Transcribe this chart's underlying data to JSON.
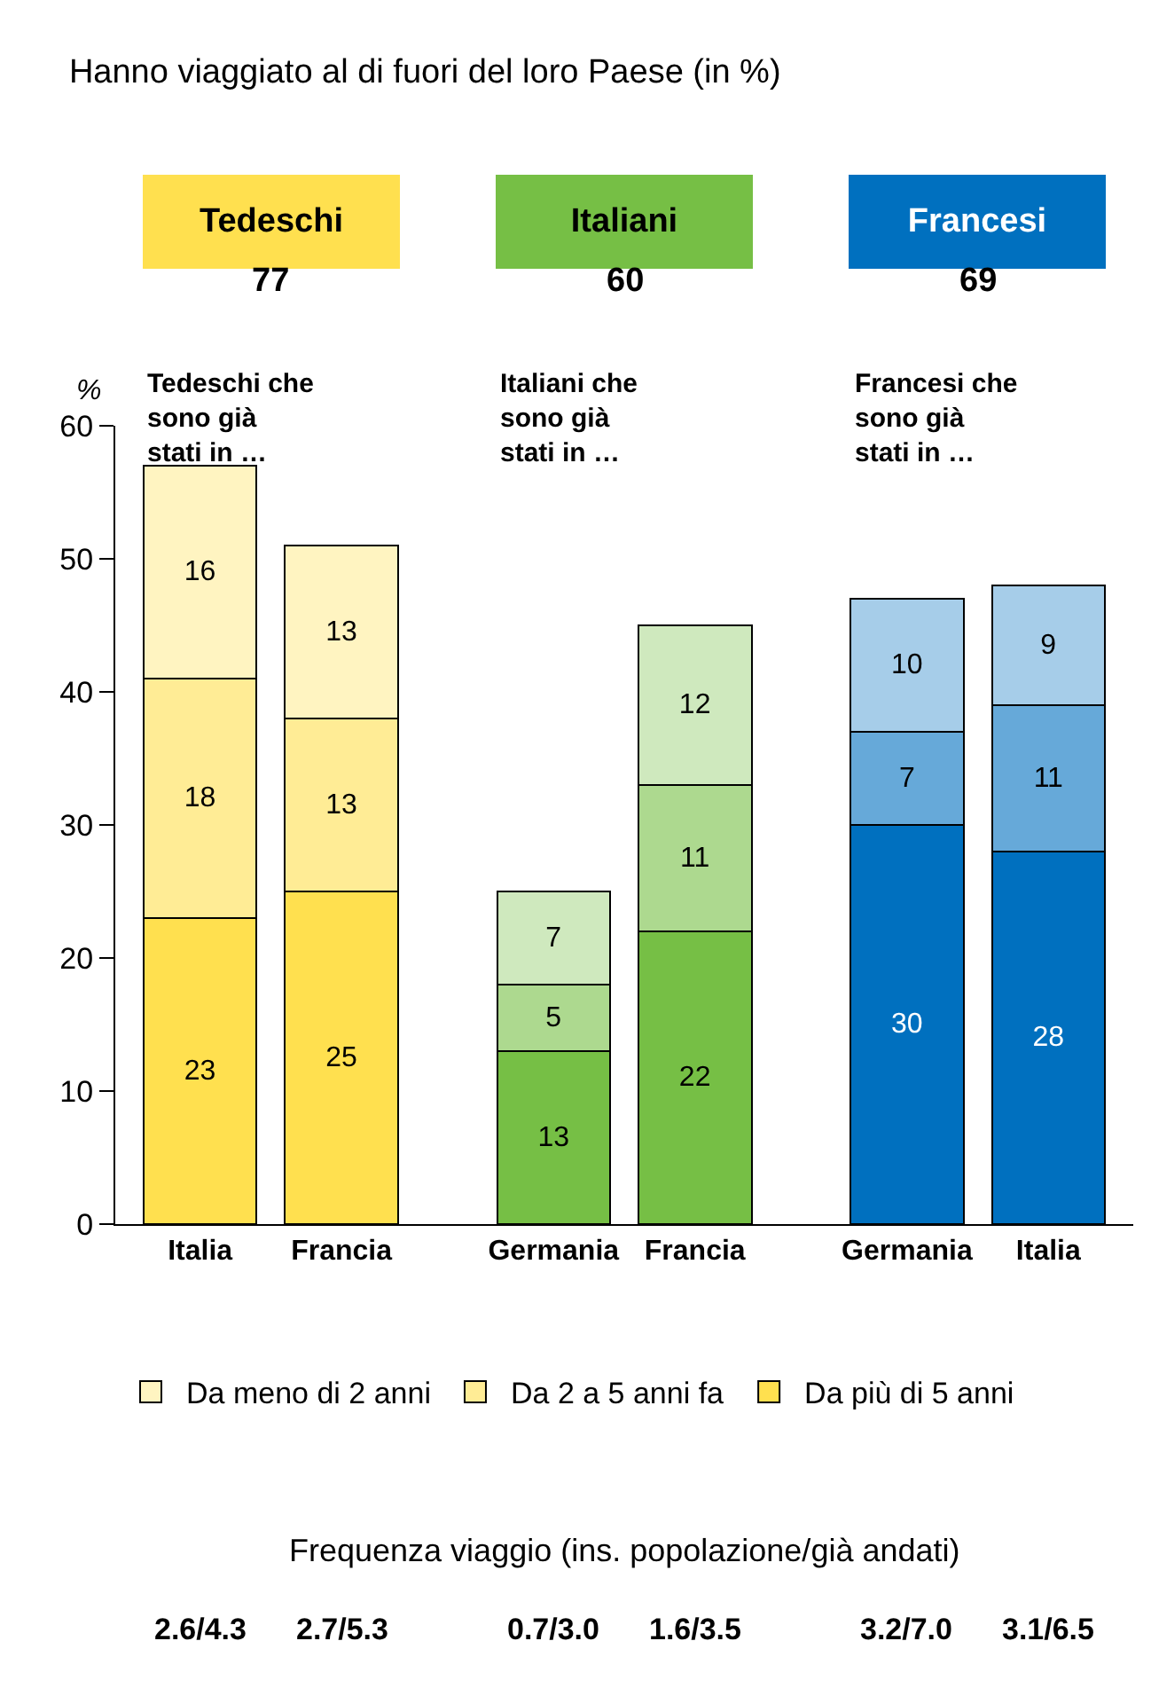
{
  "chart_data": {
    "type": "bar",
    "stacked": true,
    "title": "Hanno viaggiato al di fuori del loro Paese (in %)",
    "ylabel": "%",
    "categories": [
      "Italia",
      "Francia",
      "Germania",
      "Francia",
      "Germania",
      "Italia"
    ],
    "series": [
      {
        "name": "Da più di 5 anni",
        "colors": [
          "#ffe04f",
          "#ffe04f",
          "#76bf45",
          "#76bf45",
          "#0070bf",
          "#0070bf"
        ],
        "values": [
          23,
          25,
          13,
          22,
          30,
          28
        ]
      },
      {
        "name": "Da 2 a 5 anni fa",
        "colors": [
          "#ffec95",
          "#ffec95",
          "#add98f",
          "#add98f",
          "#66a9d9",
          "#66a9d9"
        ],
        "values": [
          18,
          13,
          5,
          11,
          7,
          11
        ]
      },
      {
        "name": "Da meno di 2 anni",
        "colors": [
          "#fff4c1",
          "#fff4c1",
          "#cfe9be",
          "#cfe9be",
          "#a6cde9",
          "#a6cde9"
        ],
        "values": [
          16,
          13,
          7,
          12,
          10,
          9
        ]
      }
    ],
    "ylim": [
      0,
      60
    ],
    "yticks": [
      0,
      10,
      20,
      30,
      40,
      50,
      60
    ],
    "grid": false,
    "legend": "bottom",
    "data_labels": true,
    "annotations": [
      "Tedeschi",
      "Italiani",
      "Francesi",
      "77",
      "60",
      "69",
      "Tedeschi che sono già stati in …",
      "Italiani che sono già stati in …",
      "Francesi che sono già stati in …",
      "Frequenza viaggio (ins. popolazione/già andati)",
      "2.6/4.3",
      "2.7/5.3",
      "0.7/3.0",
      "1.6/3.5",
      "3.2/7.0",
      "3.1/6.5"
    ]
  }
}
